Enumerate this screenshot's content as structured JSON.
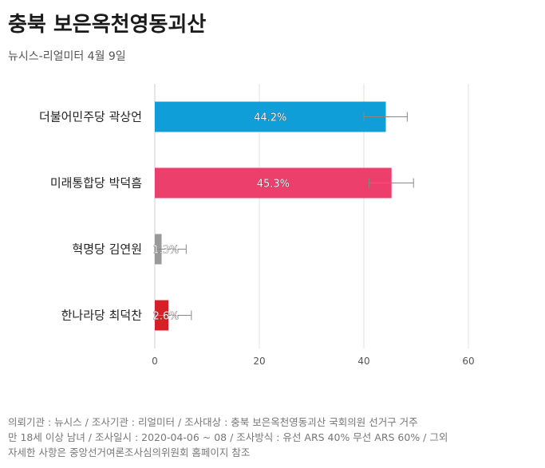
{
  "header": {
    "title": "충북 보은옥천영동괴산",
    "subtitle": "뉴시스-리얼미터 4월 9일"
  },
  "footnote": {
    "lines": [
      "의뢰기관 : 뉴시스 / 조사기관 : 리얼미터 / 조사대상 : 충북 보은옥천영동괴산 국회의원 선거구 거주",
      "만 18세 이상 남녀 / 조사일시 : 2020-04-06 ~ 08 / 조사방식 : 유선 ARS 40% 무선 ARS 60% / 그외",
      "자세한 사항은 중앙선거여론조사심의위원회 홈페이지 참조"
    ]
  },
  "chart_data": {
    "type": "bar",
    "orientation": "horizontal",
    "categories": [
      "더불어민주당 곽상언",
      "미래통합당 박덕흠",
      "혁명당 김연원",
      "한나라당 최덕찬"
    ],
    "values": [
      44.2,
      45.3,
      1.3,
      2.6
    ],
    "value_labels": [
      "44.2%",
      "45.3%",
      "1.3%",
      "2.6%"
    ],
    "error_low": [
      40.0,
      41.0,
      0.0,
      0.0
    ],
    "error_high": [
      48.3,
      49.5,
      6.0,
      7.0
    ],
    "colors": [
      "#0f9ed8",
      "#ec3f6b",
      "#999999",
      "#d71f26"
    ],
    "xlim": [
      0,
      74
    ],
    "x_ticks": [
      "0",
      "20",
      "40",
      "60"
    ],
    "grid": true
  }
}
